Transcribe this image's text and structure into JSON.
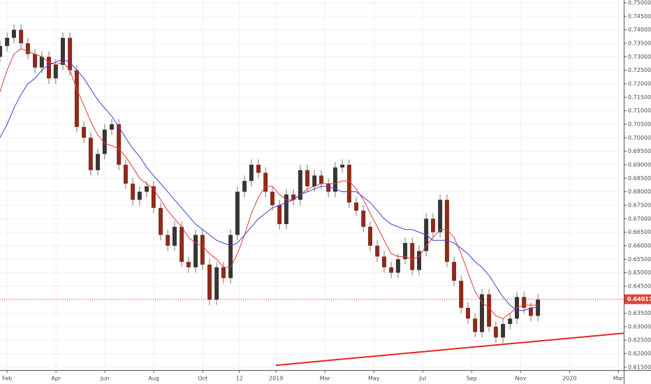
{
  "chart_data": {
    "type": "candlestick",
    "x": [
      0.71,
      1.0,
      1.28,
      1.57,
      1.85,
      2.14,
      2.42,
      2.71,
      2.99,
      3.28,
      3.57,
      3.85,
      4.14,
      4.42,
      4.71,
      4.99,
      5.28,
      5.57,
      5.85,
      6.14,
      6.42,
      6.71,
      6.99,
      7.28,
      7.57,
      7.85,
      8.14,
      8.42,
      8.71,
      8.99,
      9.28,
      9.57,
      9.85,
      10.14,
      10.42,
      10.71,
      10.99,
      11.28,
      11.57,
      11.85,
      12.14,
      12.42,
      12.71,
      12.99,
      13.28,
      13.57,
      13.85,
      14.14,
      14.42,
      14.71,
      14.99,
      15.28,
      15.57,
      15.85,
      16.14,
      16.42,
      16.71,
      16.99,
      17.28,
      17.57,
      17.85,
      18.14,
      18.42,
      18.71,
      18.99,
      19.28,
      19.57,
      19.85,
      20.14,
      20.42,
      20.71,
      20.99,
      21.28,
      21.57,
      21.85,
      22.14,
      22.42,
      22.71
    ],
    "open": [
      0.73,
      0.734,
      0.737,
      0.74,
      0.735,
      0.731,
      0.726,
      0.73,
      0.722,
      0.727,
      0.737,
      0.725,
      0.704,
      0.7,
      0.688,
      0.694,
      0.703,
      0.705,
      0.69,
      0.683,
      0.677,
      0.68,
      0.682,
      0.674,
      0.664,
      0.66,
      0.667,
      0.654,
      0.652,
      0.664,
      0.653,
      0.64,
      0.652,
      0.648,
      0.664,
      0.68,
      0.684,
      0.69,
      0.687,
      0.68,
      0.675,
      0.668,
      0.679,
      0.677,
      0.688,
      0.682,
      0.686,
      0.683,
      0.68,
      0.689,
      0.69,
      0.676,
      0.673,
      0.667,
      0.66,
      0.656,
      0.652,
      0.65,
      0.655,
      0.661,
      0.651,
      0.658,
      0.67,
      0.665,
      0.677,
      0.654,
      0.647,
      0.637,
      0.633,
      0.628,
      0.642,
      0.63,
      0.626,
      0.631,
      0.633,
      0.641,
      0.637,
      0.634
    ],
    "high": [
      0.736,
      0.739,
      0.742,
      0.742,
      0.737,
      0.733,
      0.732,
      0.732,
      0.729,
      0.739,
      0.739,
      0.727,
      0.706,
      0.702,
      0.696,
      0.705,
      0.707,
      0.707,
      0.692,
      0.685,
      0.682,
      0.684,
      0.684,
      0.676,
      0.666,
      0.669,
      0.669,
      0.656,
      0.666,
      0.666,
      0.655,
      0.654,
      0.654,
      0.666,
      0.682,
      0.686,
      0.692,
      0.692,
      0.689,
      0.682,
      0.677,
      0.681,
      0.681,
      0.69,
      0.69,
      0.688,
      0.688,
      0.685,
      0.691,
      0.692,
      0.692,
      0.678,
      0.675,
      0.669,
      0.662,
      0.658,
      0.654,
      0.657,
      0.663,
      0.663,
      0.66,
      0.672,
      0.672,
      0.679,
      0.679,
      0.656,
      0.649,
      0.639,
      0.635,
      0.644,
      0.644,
      0.632,
      0.633,
      0.635,
      0.643,
      0.643,
      0.639,
      0.642
    ],
    "low": [
      0.728,
      0.732,
      0.735,
      0.733,
      0.729,
      0.724,
      0.724,
      0.72,
      0.72,
      0.725,
      0.723,
      0.702,
      0.698,
      0.686,
      0.686,
      0.692,
      0.701,
      0.688,
      0.681,
      0.675,
      0.675,
      0.678,
      0.672,
      0.662,
      0.658,
      0.658,
      0.652,
      0.65,
      0.65,
      0.651,
      0.638,
      0.638,
      0.646,
      0.646,
      0.662,
      0.678,
      0.682,
      0.685,
      0.678,
      0.673,
      0.666,
      0.666,
      0.675,
      0.675,
      0.68,
      0.68,
      0.681,
      0.678,
      0.678,
      0.687,
      0.674,
      0.671,
      0.665,
      0.658,
      0.654,
      0.65,
      0.648,
      0.648,
      0.653,
      0.649,
      0.649,
      0.656,
      0.663,
      0.663,
      0.652,
      0.645,
      0.635,
      0.631,
      0.626,
      0.626,
      0.628,
      0.624,
      0.624,
      0.629,
      0.631,
      0.635,
      0.632,
      0.632
    ],
    "close": [
      0.734,
      0.737,
      0.74,
      0.735,
      0.731,
      0.726,
      0.73,
      0.722,
      0.727,
      0.737,
      0.725,
      0.704,
      0.7,
      0.688,
      0.694,
      0.703,
      0.705,
      0.69,
      0.683,
      0.677,
      0.68,
      0.682,
      0.674,
      0.664,
      0.66,
      0.667,
      0.654,
      0.652,
      0.664,
      0.653,
      0.64,
      0.652,
      0.648,
      0.664,
      0.68,
      0.684,
      0.69,
      0.687,
      0.68,
      0.675,
      0.668,
      0.679,
      0.677,
      0.688,
      0.682,
      0.686,
      0.683,
      0.68,
      0.689,
      0.69,
      0.676,
      0.673,
      0.667,
      0.66,
      0.656,
      0.652,
      0.65,
      0.655,
      0.661,
      0.651,
      0.658,
      0.67,
      0.665,
      0.677,
      0.654,
      0.647,
      0.637,
      0.633,
      0.628,
      0.642,
      0.63,
      0.626,
      0.631,
      0.633,
      0.641,
      0.637,
      0.634,
      0.64
    ],
    "up_color": "#3b3433",
    "down_color": "#8c2b1c",
    "lines": [
      {
        "color": "#e53935",
        "values": [
          0.717,
          0.725,
          0.731,
          0.733,
          0.732,
          0.731,
          0.73,
          0.728,
          0.727,
          0.728,
          0.725,
          0.718,
          0.712,
          0.706,
          0.701,
          0.698,
          0.697,
          0.696,
          0.693,
          0.689,
          0.685,
          0.683,
          0.681,
          0.677,
          0.673,
          0.67,
          0.667,
          0.663,
          0.661,
          0.66,
          0.657,
          0.655,
          0.652,
          0.652,
          0.657,
          0.664,
          0.672,
          0.678,
          0.682,
          0.682,
          0.679,
          0.677,
          0.677,
          0.679,
          0.681,
          0.682,
          0.683,
          0.683,
          0.683,
          0.684,
          0.684,
          0.681,
          0.677,
          0.672,
          0.667,
          0.662,
          0.657,
          0.656,
          0.656,
          0.655,
          0.656,
          0.66,
          0.663,
          0.666,
          0.666,
          0.663,
          0.657,
          0.65,
          0.643,
          0.639,
          0.637,
          0.634,
          0.633,
          0.635,
          0.637,
          0.638,
          0.638,
          0.638
        ]
      },
      {
        "color": "#3f3fd8",
        "values": [
          0.7,
          0.705,
          0.711,
          0.716,
          0.72,
          0.722,
          0.725,
          0.727,
          0.728,
          0.729,
          0.728,
          0.725,
          0.722,
          0.718,
          0.714,
          0.711,
          0.708,
          0.704,
          0.7,
          0.696,
          0.693,
          0.689,
          0.686,
          0.683,
          0.68,
          0.677,
          0.674,
          0.671,
          0.668,
          0.666,
          0.664,
          0.662,
          0.661,
          0.66,
          0.661,
          0.664,
          0.667,
          0.67,
          0.672,
          0.674,
          0.675,
          0.676,
          0.677,
          0.679,
          0.68,
          0.681,
          0.682,
          0.682,
          0.681,
          0.68,
          0.68,
          0.68,
          0.678,
          0.676,
          0.673,
          0.67,
          0.668,
          0.667,
          0.666,
          0.666,
          0.665,
          0.664,
          0.662,
          0.662,
          0.662,
          0.661,
          0.659,
          0.657,
          0.654,
          0.652,
          0.649,
          0.645,
          0.641,
          0.638,
          0.636,
          0.636,
          0.637,
          0.637
        ]
      }
    ],
    "trendline": {
      "color": "#e8231d",
      "x": [
        11.99,
        26.23
      ],
      "values": [
        0.6157,
        0.6276
      ]
    },
    "last_price": 0.64017,
    "last_price_color": "#e0453a",
    "xlim": [
      0.71,
      26.22
    ],
    "xticks": [
      {
        "value": 1,
        "label": "Feb"
      },
      {
        "value": 3,
        "label": "Apr"
      },
      {
        "value": 5,
        "label": "Jun"
      },
      {
        "value": 7,
        "label": "Aug"
      },
      {
        "value": 9,
        "label": "Oct"
      },
      {
        "value": 10.5,
        "label": "12"
      },
      {
        "value": 12,
        "label": "2019"
      },
      {
        "value": 14,
        "label": "Mar"
      },
      {
        "value": 16,
        "label": "May"
      },
      {
        "value": 18,
        "label": "Jul"
      },
      {
        "value": 20,
        "label": "Sep"
      },
      {
        "value": 22,
        "label": "Nov"
      },
      {
        "value": 24,
        "label": "2020"
      },
      {
        "value": 26,
        "label": "Mar"
      }
    ],
    "ylim": [
      0.61394,
      0.75103
    ],
    "yticks": [
      {
        "value": 0.615,
        "label": "0.61500"
      },
      {
        "value": 0.62,
        "label": "0.62000"
      },
      {
        "value": 0.625,
        "label": "0.62500"
      },
      {
        "value": 0.63,
        "label": "0.63000"
      },
      {
        "value": 0.635,
        "label": "0.63500"
      },
      {
        "value": 0.64,
        "label": "0.64000"
      },
      {
        "value": 0.645,
        "label": "0.64500"
      },
      {
        "value": 0.65,
        "label": "0.65000"
      },
      {
        "value": 0.655,
        "label": "0.65500"
      },
      {
        "value": 0.66,
        "label": "0.66000"
      },
      {
        "value": 0.665,
        "label": "0.66500"
      },
      {
        "value": 0.67,
        "label": "0.67000"
      },
      {
        "value": 0.675,
        "label": "0.67500"
      },
      {
        "value": 0.68,
        "label": "0.68000"
      },
      {
        "value": 0.685,
        "label": "0.68500"
      },
      {
        "value": 0.69,
        "label": "0.69000"
      },
      {
        "value": 0.695,
        "label": "0.69500"
      },
      {
        "value": 0.7,
        "label": "0.70000"
      },
      {
        "value": 0.705,
        "label": "0.70500"
      },
      {
        "value": 0.71,
        "label": "0.71000"
      },
      {
        "value": 0.715,
        "label": "0.71500"
      },
      {
        "value": 0.72,
        "label": "0.72000"
      },
      {
        "value": 0.725,
        "label": "0.72500"
      },
      {
        "value": 0.73,
        "label": "0.73000"
      },
      {
        "value": 0.735,
        "label": "0.73500"
      },
      {
        "value": 0.74,
        "label": "0.74000"
      },
      {
        "value": 0.745,
        "label": "0.74500"
      },
      {
        "value": 0.75,
        "label": "0.75000"
      }
    ],
    "grid": true
  }
}
